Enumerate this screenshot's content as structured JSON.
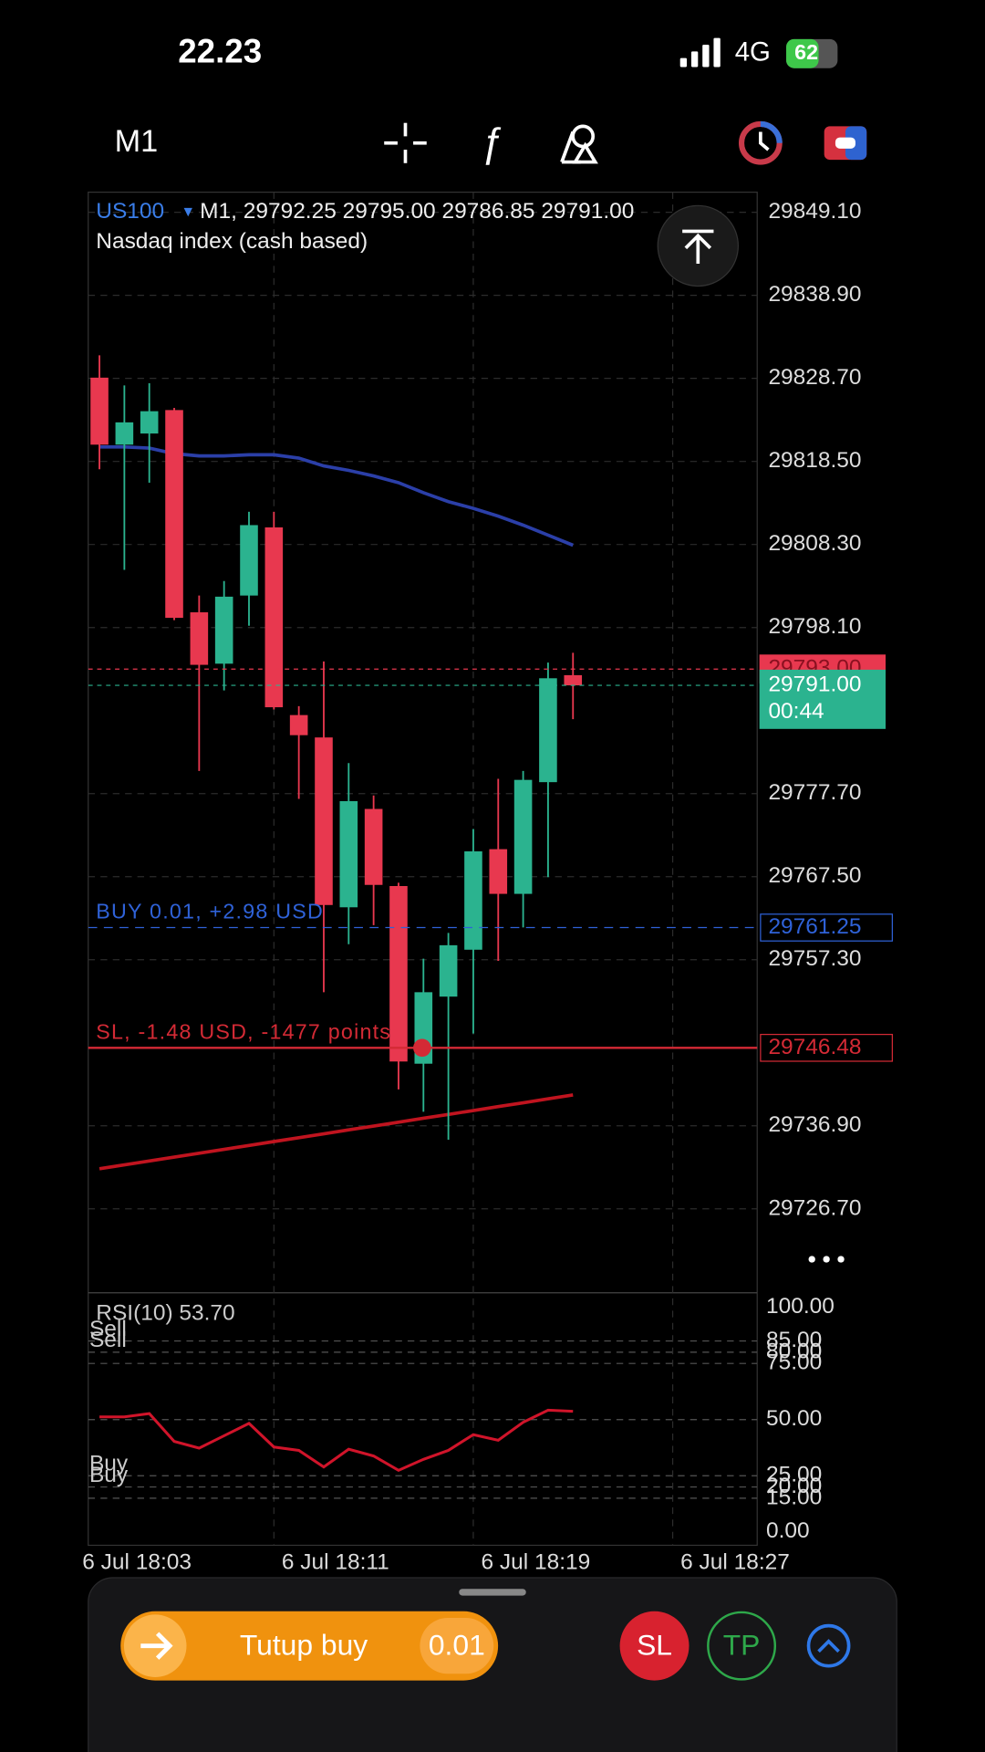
{
  "status_bar": {
    "time": "22.23",
    "network": "4G",
    "battery": "62"
  },
  "toolbar": {
    "timeframe": "M1"
  },
  "chart_data": [
    {
      "type": "candlestick",
      "symbol": "US100",
      "ohlc_text": "M1, 29792.25 29795.00 29786.85 29791.00",
      "title": "Nasdaq index (cash based)",
      "open": [
        29828.79,
        29820.56,
        29821.93,
        29824.81,
        29799.97,
        29793.66,
        29802.03,
        29810.4,
        29787.35,
        29784.6,
        29763.74,
        29775.82,
        29766.35,
        29744.53,
        29752.77,
        29758.53,
        29770.88,
        29765.39,
        29779.11,
        29792.25
      ],
      "high": [
        29831.53,
        29827.83,
        29828.1,
        29825.08,
        29802.03,
        29803.81,
        29812.32,
        29812.32,
        29788.45,
        29793.93,
        29781.45,
        29777.47,
        29766.76,
        29757.43,
        29760.59,
        29773.35,
        29779.52,
        29780.48,
        29793.8,
        29795.0
      ],
      "low": [
        29817.54,
        29805.19,
        29815.89,
        29799.0,
        29780.48,
        29790.37,
        29798.32,
        29788.03,
        29777.05,
        29753.31,
        29759.21,
        29761.55,
        29741.37,
        29738.63,
        29735.2,
        29748.24,
        29757.16,
        29761.27,
        29767.45,
        29786.85
      ],
      "close": [
        29820.56,
        29823.3,
        29824.67,
        29799.29,
        29793.52,
        29801.89,
        29810.68,
        29788.31,
        29784.88,
        29764.02,
        29776.78,
        29766.49,
        29744.8,
        29753.31,
        29759.08,
        29770.61,
        29765.39,
        29779.39,
        29791.87,
        29791.0
      ],
      "up_color": "#2bb38f",
      "down_color": "#e8384f",
      "overlays": [
        {
          "color": "#2b3fa8",
          "values": [
            29820.28,
            29820.28,
            29820.14,
            29819.46,
            29819.18,
            29819.18,
            29819.32,
            29819.32,
            29818.91,
            29817.95,
            29817.4,
            29816.72,
            29815.89,
            29814.66,
            29813.56,
            29812.74,
            29811.78,
            29810.68,
            29809.45,
            29808.21
          ]
        },
        {
          "color": "#c0141f",
          "values": [
            29731.63,
            29732.11,
            29732.58,
            29733.06,
            29733.54,
            29734.01,
            29734.49,
            29734.97,
            29735.44,
            29735.92,
            29736.4,
            29736.87,
            29737.35,
            29737.83,
            29738.3,
            29738.78,
            29739.26,
            29739.73,
            29740.21,
            29740.69
          ]
        }
      ],
      "xlim": [
        -0.45,
        26.39
      ],
      "xticks": [
        {
          "value": -1,
          "label": "6 Jul 18:03"
        },
        {
          "value": 7,
          "label": "6 Jul 18:11"
        },
        {
          "value": 15,
          "label": "6 Jul 18:19"
        },
        {
          "value": 23,
          "label": "6 Jul 18:27"
        }
      ],
      "ylim": [
        29716.67,
        29851.57
      ],
      "yticks": [
        {
          "value": 29849.1,
          "label": "29849.10"
        },
        {
          "value": 29838.9,
          "label": "29838.90"
        },
        {
          "value": 29828.7,
          "label": "29828.70"
        },
        {
          "value": 29818.5,
          "label": "29818.50"
        },
        {
          "value": 29808.3,
          "label": "29808.30"
        },
        {
          "value": 29798.1,
          "label": "29798.10"
        },
        {
          "value": 29777.7,
          "label": "29777.70"
        },
        {
          "value": 29767.5,
          "label": "29767.50"
        },
        {
          "value": 29757.3,
          "label": "29757.30"
        },
        {
          "value": 29736.9,
          "label": "29736.90"
        },
        {
          "value": 29726.7,
          "label": "29726.70"
        }
      ],
      "grid": true,
      "ask": {
        "value": 29793,
        "label": "29793.00",
        "color": "#e8384f"
      },
      "bid": {
        "value": 29791,
        "label": "29791.00",
        "countdown": "00:44",
        "color": "#2bb38f"
      },
      "position": {
        "text": "BUY 0.01, +2.98 USD",
        "value": 29761.25,
        "label": "29761.25",
        "color": "#2f62d8"
      },
      "stop_loss": {
        "text": "SL, -1.48 USD, -1477 points",
        "value": 29746.48,
        "label": "29746.48",
        "color": "#d42a35"
      }
    },
    {
      "type": "line",
      "title": "RSI(10) 53.70",
      "color": "#d0142a",
      "values": [
        51.2,
        51.2,
        52.7,
        40.3,
        37.3,
        42.8,
        48.3,
        37.8,
        36.3,
        28.9,
        36.8,
        33.8,
        27.4,
        32.3,
        36.3,
        43.3,
        40.8,
        48.8,
        54.2,
        53.7
      ],
      "ylim": [
        0,
        100
      ],
      "yticks": [
        {
          "value": 100,
          "label": "100.00"
        },
        {
          "value": 85,
          "label": "85.00"
        },
        {
          "value": 80,
          "label": "80.00"
        },
        {
          "value": 75,
          "label": "75.00"
        },
        {
          "value": 50,
          "label": "50.00"
        },
        {
          "value": 25,
          "label": "25.00"
        },
        {
          "value": 20,
          "label": "20.00"
        },
        {
          "value": 15,
          "label": "15.00"
        },
        {
          "value": 0,
          "label": "0.00"
        }
      ],
      "levels": [
        {
          "value": 85,
          "label": "Sell"
        },
        {
          "value": 80,
          "label": "Sell"
        },
        {
          "value": 25,
          "label": "Buy"
        },
        {
          "value": 20,
          "label": "Buy"
        }
      ]
    }
  ],
  "order_panel": {
    "button": "Tutup buy",
    "volume": "0.01",
    "sl": "SL",
    "tp": "TP"
  }
}
